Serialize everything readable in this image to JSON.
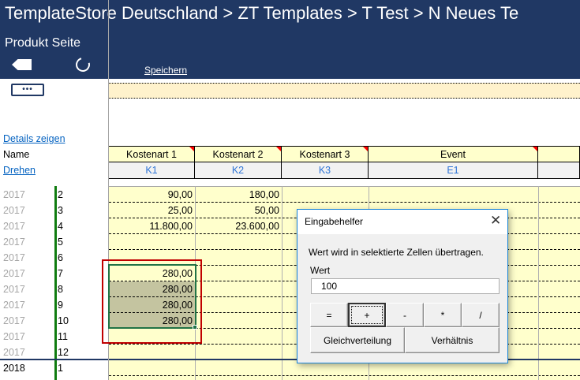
{
  "header": {
    "title": "TemplateStore Deutschland > ZT  Templates > T  Test > N  Neues Te",
    "subtitle": "Produkt Seite",
    "save_label": "Speichern",
    "back_icon": "back-arrow-icon",
    "reload_icon": "reload-icon",
    "more_label": "•••"
  },
  "left": {
    "details_link": "Details zeigen",
    "name_label": "Name",
    "rotate_link": "Drehen"
  },
  "columns": [
    {
      "label": "Kostenart 1",
      "code": "K1"
    },
    {
      "label": "Kostenart 2",
      "code": "K2"
    },
    {
      "label": "Kostenart 3",
      "code": "K3"
    },
    {
      "label": "Event",
      "code": "E1"
    },
    {
      "label": "",
      "code": ""
    }
  ],
  "rows": [
    {
      "year": "2017",
      "month": "2",
      "k1": "90,00",
      "k2": "180,00"
    },
    {
      "year": "2017",
      "month": "3",
      "k1": "25,00",
      "k2": "50,00"
    },
    {
      "year": "2017",
      "month": "4",
      "k1": "11.800,00",
      "k2": "23.600,00"
    },
    {
      "year": "2017",
      "month": "5",
      "k1": "",
      "k2": ""
    },
    {
      "year": "2017",
      "month": "6",
      "k1": "",
      "k2": ""
    },
    {
      "year": "2017",
      "month": "7",
      "k1": "280,00",
      "k2": ""
    },
    {
      "year": "2017",
      "month": "8",
      "k1": "280,00",
      "k2": ""
    },
    {
      "year": "2017",
      "month": "9",
      "k1": "280,00",
      "k2": ""
    },
    {
      "year": "2017",
      "month": "10",
      "k1": "280,00",
      "k2": ""
    },
    {
      "year": "2017",
      "month": "11",
      "k1": "",
      "k2": ""
    },
    {
      "year": "2017",
      "month": "12",
      "k1": "",
      "k2": ""
    },
    {
      "year": "2018",
      "month": "1",
      "k1": "",
      "k2": ""
    }
  ],
  "dialog": {
    "title": "Eingabehelfer",
    "message": "Wert wird in selektierte Zellen übertragen.",
    "value_label": "Wert",
    "value": "100",
    "ops": [
      "=",
      "+",
      "-",
      "*",
      "/"
    ],
    "distribute_label": "Gleichverteilung",
    "ratio_label": "Verhältnis"
  },
  "colors": {
    "header": "#203864",
    "cell": "#ffffcc",
    "selection": "#217346",
    "highlight": "#c00000"
  }
}
